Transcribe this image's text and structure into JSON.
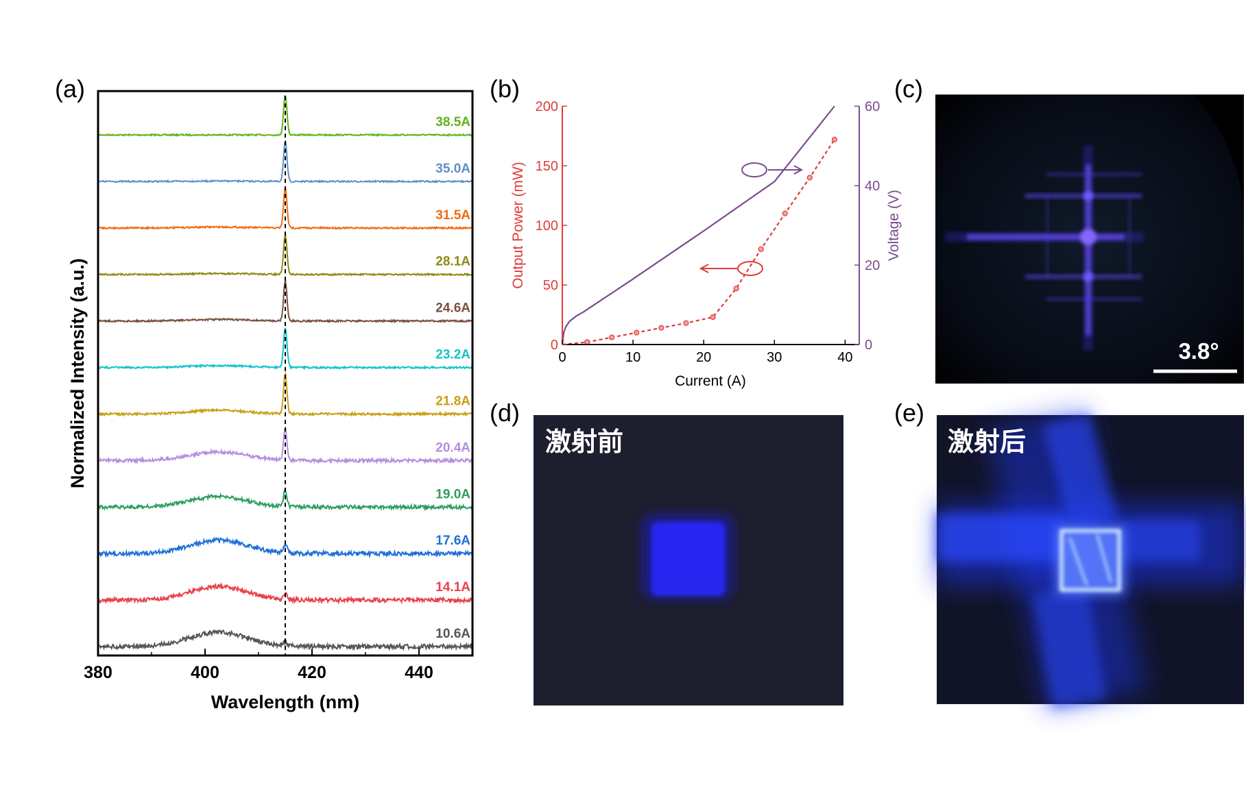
{
  "panels": {
    "a": "(a)",
    "b": "(b)",
    "c": "(c)",
    "d": "(d)",
    "e": "(e)"
  },
  "chart_data": [
    {
      "type": "line",
      "panel": "(a)",
      "xlabel": "Wavelength (nm)",
      "ylabel": "Normalized Intensity (a.u.)",
      "xlim": [
        380,
        450
      ],
      "xticks": [
        380,
        400,
        420,
        440
      ],
      "reference_line_x": 415,
      "reference_line_style": "dashed",
      "grid": false,
      "series": [
        {
          "name": "38.5A",
          "color": "#5fb31c",
          "broad_amp": 0.0,
          "peak_amp": 1.0
        },
        {
          "name": "35.0A",
          "color": "#5f8fc9",
          "broad_amp": 0.02,
          "peak_amp": 1.0
        },
        {
          "name": "31.5A",
          "color": "#f06a0f",
          "broad_amp": 0.05,
          "peak_amp": 1.0
        },
        {
          "name": "28.1A",
          "color": "#8c8a14",
          "broad_amp": 0.05,
          "peak_amp": 1.0
        },
        {
          "name": "24.6A",
          "color": "#7a4f3f",
          "broad_amp": 0.08,
          "peak_amp": 1.0
        },
        {
          "name": "23.2A",
          "color": "#12c4c8",
          "broad_amp": 0.1,
          "peak_amp": 1.0
        },
        {
          "name": "21.8A",
          "color": "#c9a014",
          "broad_amp": 0.2,
          "peak_amp": 1.0
        },
        {
          "name": "20.4A",
          "color": "#b48ee0",
          "broad_amp": 0.45,
          "peak_amp": 0.8
        },
        {
          "name": "19.0A",
          "color": "#2e9e61",
          "broad_amp": 0.55,
          "peak_amp": 0.4
        },
        {
          "name": "17.6A",
          "color": "#1f6fd8",
          "broad_amp": 0.7,
          "peak_amp": 0.2
        },
        {
          "name": "14.1A",
          "color": "#e8424a",
          "broad_amp": 0.7,
          "peak_amp": 0.15
        },
        {
          "name": "10.6A",
          "color": "#555555",
          "broad_amp": 0.75,
          "peak_amp": 0.1
        }
      ]
    },
    {
      "type": "line",
      "panel": "(b)",
      "xlabel": "Current (A)",
      "ylabel_left": "Output Power (mW)",
      "ylabel_right": "Voltage (V)",
      "xlim": [
        0,
        42
      ],
      "xticks": [
        0,
        10,
        20,
        30,
        40
      ],
      "ylim_left": [
        0,
        200
      ],
      "yticks_left": [
        0,
        50,
        100,
        150,
        200
      ],
      "ylim_right": [
        0,
        60
      ],
      "yticks_right": [
        0,
        20,
        40,
        60
      ],
      "left_color": "#e03a3a",
      "right_color": "#7a4a8c",
      "series": [
        {
          "name": "Output Power",
          "axis": "left",
          "style": "dashed-with-markers",
          "x": [
            0,
            3.5,
            7,
            10.5,
            14,
            17.5,
            21.3,
            24.6,
            28.1,
            31.5,
            35.0,
            38.5
          ],
          "y": [
            0,
            2,
            6,
            10,
            14,
            18,
            23,
            47,
            80,
            110,
            140,
            172
          ]
        },
        {
          "name": "Voltage",
          "axis": "right",
          "style": "solid",
          "x": [
            0,
            0.2,
            0.5,
            1,
            2,
            3,
            10,
            20,
            30,
            38.5
          ],
          "y": [
            0,
            3,
            4.5,
            5.8,
            7.2,
            8.2,
            16.5,
            28.6,
            41,
            60
          ]
        }
      ]
    }
  ],
  "photos": {
    "c": {
      "scale_label": "3.8°"
    },
    "d": {
      "caption": "激射前"
    },
    "e": {
      "caption": "激射后"
    }
  }
}
